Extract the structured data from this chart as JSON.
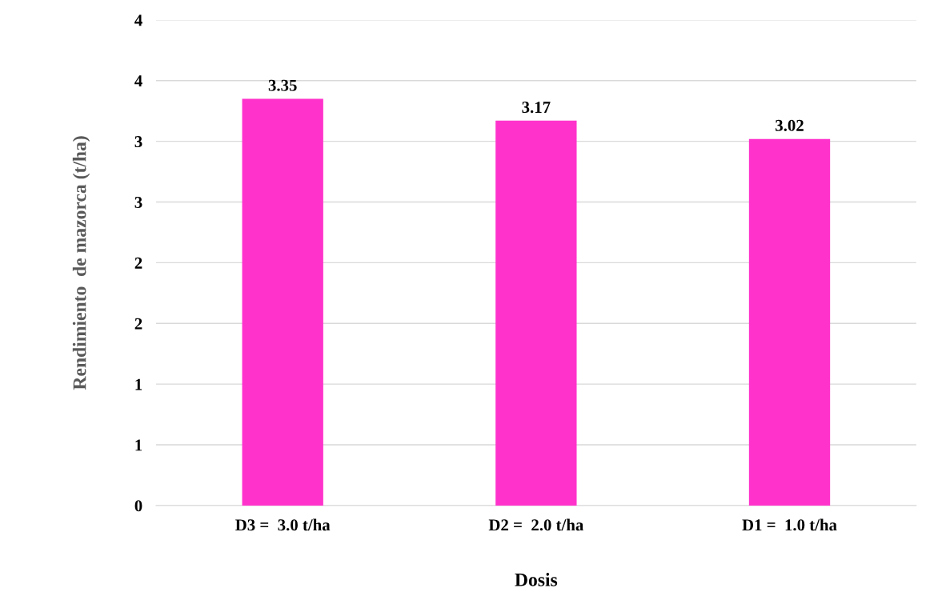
{
  "chart_data": {
    "type": "bar",
    "xlabel": "Dosis",
    "ylabel": "Rendimiento  de mazorca (t/ha)",
    "categories": [
      "D3 =  3.0 t/ha",
      "D2 =  2.0 t/ha",
      "D1 =  1.0 t/ha"
    ],
    "values": [
      3.35,
      3.17,
      3.02
    ],
    "color": "#ff33cc",
    "data_labels": true,
    "ylim": [
      0,
      4
    ],
    "yticks": [
      0,
      {
        "value": 0.5,
        "label": "1"
      },
      {
        "value": 1,
        "label": "1"
      },
      {
        "value": 1.5,
        "label": "2"
      },
      {
        "value": 2,
        "label": "2"
      },
      {
        "value": 2.5,
        "label": "3"
      },
      {
        "value": 3,
        "label": "3"
      },
      {
        "value": 3.5,
        "label": "4"
      },
      {
        "value": 4,
        "label": "4"
      }
    ],
    "grid": "y",
    "legend": false
  }
}
